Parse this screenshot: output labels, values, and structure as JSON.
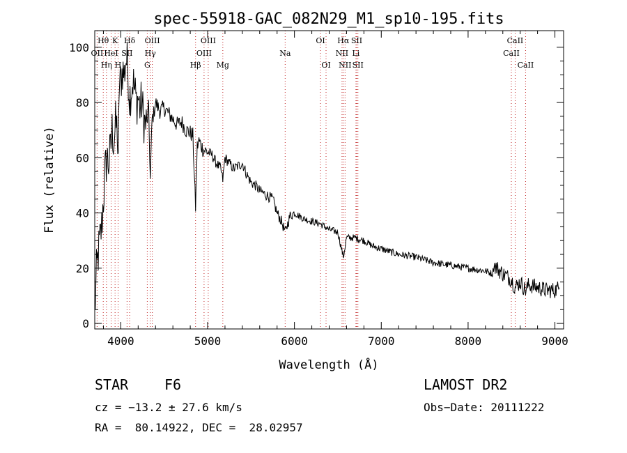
{
  "chart_data": {
    "type": "line",
    "title": "spec-55918-GAC_082N29_M1_sp10-195.fits",
    "xlabel": "Wavelength (Å)",
    "ylabel": "Flux (relative)",
    "xlim": [
      3700,
      9100
    ],
    "ylim": [
      -2,
      106
    ],
    "xticks": [
      4000,
      5000,
      6000,
      7000,
      8000,
      9000
    ],
    "yticks": [
      0,
      20,
      40,
      60,
      80,
      100
    ],
    "grid": false,
    "series": [
      {
        "x": [
          3700,
          3720,
          3740,
          3760,
          3780,
          3800,
          3820,
          3840,
          3860,
          3880,
          3900,
          3920,
          3940,
          3960,
          3970,
          3980,
          4000,
          4020,
          4040,
          4060,
          4080,
          4100,
          4120,
          4140,
          4160,
          4180,
          4200,
          4220,
          4240,
          4260,
          4280,
          4300,
          4320,
          4340,
          4360,
          4380,
          4400,
          4450,
          4500,
          4550,
          4600,
          4650,
          4700,
          4750,
          4800,
          4830,
          4861,
          4880,
          4900,
          4950,
          5000,
          5050,
          5100,
          5150,
          5175,
          5200,
          5250,
          5300,
          5350,
          5400,
          5450,
          5500,
          5550,
          5600,
          5650,
          5700,
          5750,
          5800,
          5850,
          5893,
          5950,
          6000,
          6100,
          6200,
          6300,
          6400,
          6500,
          6563,
          6600,
          6700,
          6800,
          6900,
          7000,
          7200,
          7400,
          7600,
          7800,
          8000,
          8200,
          8280,
          8300,
          8400,
          8498,
          8542,
          8600,
          8662,
          8700,
          8800,
          8900,
          9000,
          9050
        ],
        "y": [
          4,
          18,
          25,
          30,
          35,
          45,
          55,
          60,
          58,
          62,
          70,
          66,
          72,
          70,
          55,
          85,
          88,
          92,
          90,
          96,
          93,
          82,
          85,
          88,
          84,
          80,
          82,
          78,
          80,
          75,
          72,
          72,
          78,
          52,
          74,
          76,
          80,
          77,
          78,
          76,
          74,
          72,
          73,
          70,
          69,
          68,
          42,
          64,
          66,
          63,
          62,
          61,
          58,
          56,
          52,
          60,
          58,
          56,
          57,
          58,
          54,
          51,
          50,
          48,
          47,
          46,
          45,
          40,
          37,
          33,
          39,
          40,
          38,
          37,
          36,
          34,
          33,
          24,
          31,
          31,
          30,
          28,
          27,
          25,
          24,
          22,
          21,
          20,
          19,
          18,
          21,
          18,
          16,
          13,
          15,
          12,
          14,
          13,
          12,
          12,
          13
        ]
      }
    ],
    "line_annotations": [
      {
        "label": "Hθ",
        "wl": 3798,
        "row": 0
      },
      {
        "label": "OII",
        "wl": 3727,
        "row": 1
      },
      {
        "label": "Hη",
        "wl": 3835,
        "row": 2
      },
      {
        "label": "K",
        "wl": 3934,
        "row": 0
      },
      {
        "label": "HeI",
        "wl": 3889,
        "row": 1
      },
      {
        "label": "H",
        "wl": 3969,
        "row": 2
      },
      {
        "label": "Hδ",
        "wl": 4102,
        "row": 0
      },
      {
        "label": "SII",
        "wl": 4072,
        "row": 1
      },
      {
        "label": "OIII",
        "wl": 4363,
        "row": 0
      },
      {
        "label": "Hγ",
        "wl": 4340,
        "row": 1
      },
      {
        "label": "G",
        "wl": 4305,
        "row": 2
      },
      {
        "label": "Hβ",
        "wl": 4861,
        "row": 2
      },
      {
        "label": "OIII",
        "wl": 5007,
        "row": 0
      },
      {
        "label": "OIII",
        "wl": 4959,
        "row": 1
      },
      {
        "label": "Mg",
        "wl": 5175,
        "row": 2
      },
      {
        "label": "Na",
        "wl": 5893,
        "row": 1
      },
      {
        "label": "OI",
        "wl": 6300,
        "row": 0
      },
      {
        "label": "OI",
        "wl": 6364,
        "row": 2
      },
      {
        "label": "Hα",
        "wl": 6563,
        "row": 0
      },
      {
        "label": "NII",
        "wl": 6548,
        "row": 1
      },
      {
        "label": "NII",
        "wl": 6583,
        "row": 2
      },
      {
        "label": "SII",
        "wl": 6717,
        "row": 0
      },
      {
        "label": "SII",
        "wl": 6731,
        "row": 2
      },
      {
        "label": "Li",
        "wl": 6708,
        "row": 1
      },
      {
        "label": "CaII",
        "wl": 8542,
        "row": 0
      },
      {
        "label": "CaII",
        "wl": 8498,
        "row": 1
      },
      {
        "label": "CaII",
        "wl": 8662,
        "row": 2
      }
    ]
  },
  "info": {
    "class_label": "STAR",
    "subclass": "F6",
    "survey": "LAMOST DR2",
    "redshift_text": "cz = −13.2 ± 27.6 km/s",
    "obsdate_text": "Obs−Date: 20111222",
    "coords_text": "RA =  80.14922, DEC =  28.02957"
  }
}
